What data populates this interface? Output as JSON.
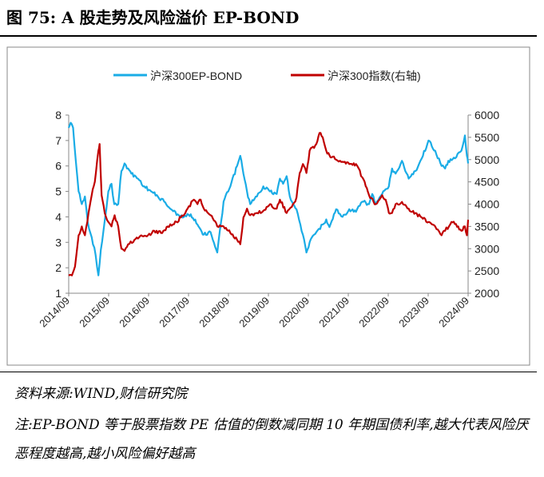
{
  "figure": {
    "title": "图 75:  A 股走势及风险溢价 EP-BOND",
    "source": "资料来源:WIND,财信研究院",
    "note": "注:EP-BOND 等于股票指数 PE 估值的倒数减同期 10 年期国债利率,越大代表风险厌恶程度越高,越小风险偏好越高"
  },
  "chart_data": {
    "type": "line",
    "legend_position": "top",
    "grid": false,
    "x_ticks": [
      "2014/09",
      "2015/09",
      "2016/09",
      "2017/09",
      "2018/09",
      "2019/09",
      "2020/09",
      "2021/09",
      "2022/09",
      "2023/09",
      "2024/09"
    ],
    "left_axis": {
      "ylim": [
        1,
        8
      ],
      "ticks": [
        "1",
        "2",
        "3",
        "4",
        "5",
        "6",
        "7",
        "8"
      ]
    },
    "right_axis": {
      "ylim": [
        2000,
        6000
      ],
      "ticks": [
        "2000",
        "2500",
        "3000",
        "3500",
        "4000",
        "4500",
        "5000",
        "5500",
        "6000"
      ]
    },
    "series": [
      {
        "name": "沪深300EP-BOND",
        "axis": "left",
        "color": "#1AACE6",
        "x": [
          2014.67,
          2014.72,
          2014.78,
          2014.85,
          2014.92,
          2015.0,
          2015.08,
          2015.15,
          2015.25,
          2015.35,
          2015.42,
          2015.48,
          2015.55,
          2015.62,
          2015.67,
          2015.75,
          2015.82,
          2015.92,
          2016.0,
          2016.08,
          2016.17,
          2016.25,
          2016.42,
          2016.58,
          2016.75,
          2016.92,
          2017.08,
          2017.25,
          2017.42,
          2017.58,
          2017.75,
          2017.92,
          2018.0,
          2018.08,
          2018.25,
          2018.42,
          2018.58,
          2018.75,
          2018.92,
          2019.0,
          2019.08,
          2019.17,
          2019.25,
          2019.42,
          2019.58,
          2019.75,
          2019.92,
          2020.0,
          2020.08,
          2020.17,
          2020.25,
          2020.42,
          2020.58,
          2020.67,
          2020.75,
          2020.92,
          2021.08,
          2021.17,
          2021.25,
          2021.42,
          2021.58,
          2021.75,
          2021.92,
          2022.08,
          2022.25,
          2022.33,
          2022.42,
          2022.58,
          2022.75,
          2022.83,
          2022.92,
          2023.08,
          2023.25,
          2023.42,
          2023.58,
          2023.75,
          2023.92,
          2024.08,
          2024.17,
          2024.25,
          2024.42,
          2024.58,
          2024.67,
          2024.72,
          2024.75
        ],
        "y": [
          7.5,
          7.7,
          7.5,
          6.2,
          5.0,
          4.5,
          4.8,
          3.8,
          3.2,
          2.5,
          1.7,
          2.7,
          3.5,
          4.3,
          5.0,
          5.3,
          4.5,
          4.5,
          5.8,
          6.1,
          5.9,
          5.7,
          5.5,
          5.2,
          5.0,
          4.8,
          4.6,
          4.3,
          4.1,
          4.0,
          4.1,
          3.7,
          3.5,
          3.3,
          3.4,
          2.6,
          4.6,
          5.2,
          6.0,
          6.4,
          5.7,
          5.0,
          4.5,
          4.8,
          5.2,
          5.0,
          4.9,
          5.5,
          5.3,
          5.6,
          4.8,
          4.3,
          3.3,
          2.6,
          3.0,
          3.4,
          3.7,
          3.9,
          3.6,
          4.3,
          4.0,
          4.3,
          4.2,
          4.6,
          4.5,
          4.9,
          4.5,
          4.9,
          5.2,
          5.9,
          5.7,
          6.2,
          5.5,
          5.8,
          6.3,
          7.0,
          6.6,
          6.0,
          5.9,
          6.2,
          6.3,
          6.6,
          7.2,
          6.4,
          6.1
        ]
      },
      {
        "name": "沪深300指数(右轴)",
        "axis": "right",
        "color": "#C00000",
        "x": [
          2014.67,
          2014.75,
          2014.83,
          2014.92,
          2015.0,
          2015.08,
          2015.17,
          2015.25,
          2015.33,
          2015.42,
          2015.45,
          2015.5,
          2015.58,
          2015.67,
          2015.75,
          2015.83,
          2015.92,
          2016.0,
          2016.08,
          2016.17,
          2016.33,
          2016.5,
          2016.67,
          2016.83,
          2017.0,
          2017.17,
          2017.33,
          2017.5,
          2017.67,
          2017.83,
          2017.92,
          2018.0,
          2018.08,
          2018.25,
          2018.42,
          2018.58,
          2018.75,
          2018.92,
          2019.0,
          2019.08,
          2019.17,
          2019.25,
          2019.42,
          2019.58,
          2019.75,
          2019.92,
          2020.0,
          2020.17,
          2020.33,
          2020.42,
          2020.5,
          2020.58,
          2020.67,
          2020.75,
          2020.92,
          2021.0,
          2021.08,
          2021.17,
          2021.25,
          2021.42,
          2021.58,
          2021.75,
          2021.92,
          2022.08,
          2022.25,
          2022.42,
          2022.58,
          2022.67,
          2022.75,
          2022.83,
          2022.92,
          2023.08,
          2023.25,
          2023.42,
          2023.58,
          2023.75,
          2023.92,
          2024.08,
          2024.17,
          2024.33,
          2024.5,
          2024.58,
          2024.67,
          2024.72,
          2024.75
        ],
        "y": [
          2400,
          2400,
          2600,
          3300,
          3500,
          3300,
          3800,
          4200,
          4500,
          5200,
          5350,
          4200,
          3800,
          3600,
          3500,
          3750,
          3500,
          3000,
          2950,
          3100,
          3200,
          3300,
          3300,
          3400,
          3350,
          3500,
          3550,
          3700,
          3900,
          4100,
          4000,
          4100,
          3900,
          3750,
          3500,
          3500,
          3350,
          3200,
          3100,
          3700,
          3900,
          3750,
          3800,
          3850,
          4000,
          3900,
          4100,
          3800,
          4000,
          4150,
          4700,
          4900,
          4700,
          5200,
          5350,
          5600,
          5500,
          5200,
          5100,
          5000,
          4950,
          4900,
          4900,
          4600,
          4200,
          4000,
          4200,
          4100,
          3800,
          3800,
          4000,
          4050,
          3900,
          3800,
          3700,
          3600,
          3500,
          3300,
          3400,
          3600,
          3500,
          3400,
          3500,
          3300,
          3650
        ]
      }
    ]
  }
}
